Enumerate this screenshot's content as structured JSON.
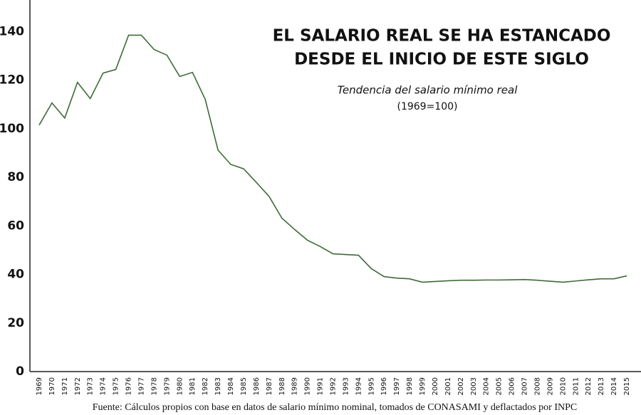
{
  "chart_data": {
    "type": "line",
    "title": [
      "EL SALARIO REAL SE HA ESTANCADO",
      "DESDE EL INICIO DE ESTE SIGLO"
    ],
    "subtitle": [
      "Tendencia del salario mínimo real",
      "(1969=100)"
    ],
    "source": "Fuente: Cálculos propios con base en datos de salario mínimo nominal, tomados de CONASAMI y deflactados por INPC",
    "x": [
      1969,
      1970,
      1971,
      1972,
      1973,
      1974,
      1975,
      1976,
      1977,
      1978,
      1979,
      1980,
      1981,
      1982,
      1983,
      1984,
      1985,
      1986,
      1987,
      1988,
      1989,
      1990,
      1991,
      1992,
      1993,
      1994,
      1995,
      1996,
      1997,
      1998,
      1999,
      2000,
      2001,
      2002,
      2003,
      2004,
      2005,
      2006,
      2007,
      2008,
      2009,
      2010,
      2011,
      2012,
      2013,
      2014,
      2015
    ],
    "series": [
      {
        "color": "#3f6b37",
        "values": [
          101.5,
          110.6,
          104.4,
          119.1,
          112.4,
          122.9,
          124.4,
          138.5,
          138.5,
          132.6,
          130.3,
          121.5,
          123.2,
          112.1,
          91.2,
          85.3,
          83.5,
          77.9,
          72.1,
          63.2,
          58.5,
          54.1,
          51.5,
          48.5,
          48.2,
          47.9,
          42.4,
          39.1,
          38.5,
          38.2,
          36.8,
          37.1,
          37.4,
          37.6,
          37.6,
          37.7,
          37.7,
          37.8,
          37.9,
          37.6,
          37.2,
          36.8,
          37.3,
          37.8,
          38.2,
          38.2,
          39.4
        ]
      }
    ],
    "xlim": [
      1969,
      2015
    ],
    "xticks": [
      1969,
      1970,
      1971,
      1972,
      1973,
      1974,
      1975,
      1976,
      1977,
      1978,
      1979,
      1980,
      1981,
      1982,
      1983,
      1984,
      1985,
      1986,
      1987,
      1988,
      1989,
      1990,
      1991,
      1992,
      1993,
      1994,
      1995,
      1996,
      1997,
      1998,
      1999,
      2000,
      2001,
      2002,
      2003,
      2004,
      2005,
      2006,
      2007,
      2008,
      2009,
      2010,
      2011,
      2012,
      2013,
      2014,
      2015
    ],
    "ylim": [
      0,
      153
    ],
    "yticks": [
      0,
      20,
      40,
      60,
      80,
      100,
      120,
      140
    ],
    "grid": false,
    "title_color": "#3b6e3a"
  }
}
